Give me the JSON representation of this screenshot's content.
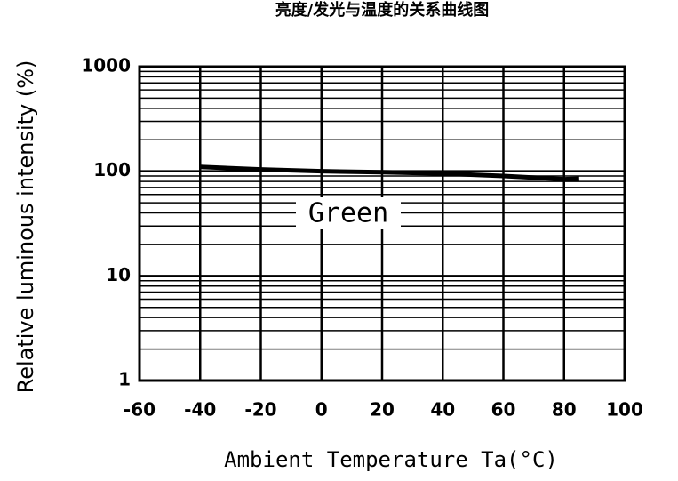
{
  "chart_data": {
    "type": "line",
    "title": "亮度/发光与温度的关系曲线图",
    "x_label": "Ambient Temperature Ta(°C)",
    "y_label": "Relative luminous intensity (%)",
    "annotation": "Green",
    "x": [
      -40,
      -20,
      0,
      20,
      40,
      60,
      80,
      85
    ],
    "series": [
      {
        "name": "Green",
        "color": "#000000",
        "values": [
          110,
          104,
          100,
          98,
          95,
          90,
          84,
          85
        ]
      }
    ],
    "xlim": [
      -60,
      100
    ],
    "xticks": [
      -60,
      -40,
      -20,
      0,
      20,
      40,
      60,
      80,
      100
    ],
    "ylim": [
      1,
      1000
    ],
    "yticks": [
      1,
      10,
      100,
      1000
    ],
    "log_y": true,
    "grid": true,
    "minor_grid": true
  }
}
